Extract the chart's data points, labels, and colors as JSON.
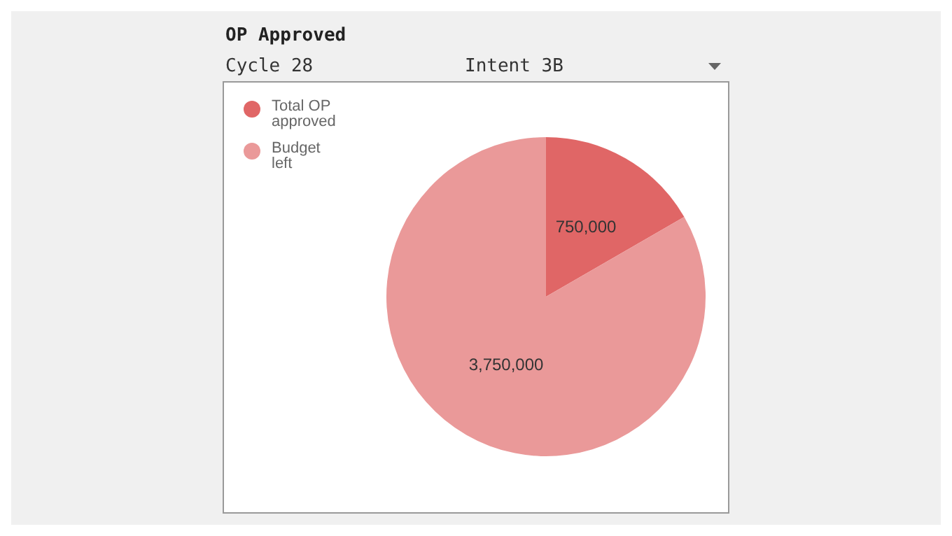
{
  "chart_data": {
    "type": "pie",
    "title": "OP Approved",
    "annotations": [
      "Cycle 28",
      "Intent 3B"
    ],
    "categories": [
      "Total OP approved",
      "Budget left"
    ],
    "values": [
      750000,
      3750000
    ],
    "colors": [
      "#e06666",
      "#ea9999"
    ],
    "value_labels": [
      "750,000",
      "3,750,000"
    ],
    "legend": "top left"
  }
}
